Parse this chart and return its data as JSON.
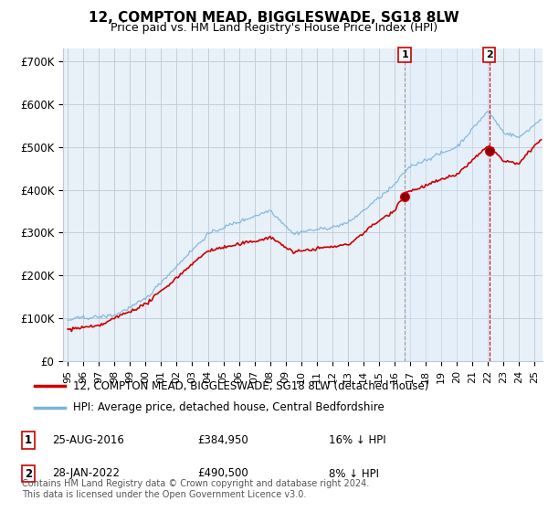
{
  "title": "12, COMPTON MEAD, BIGGLESWADE, SG18 8LW",
  "subtitle": "Price paid vs. HM Land Registry's House Price Index (HPI)",
  "ylabel_ticks": [
    "£0",
    "£100K",
    "£200K",
    "£300K",
    "£400K",
    "£500K",
    "£600K",
    "£700K"
  ],
  "ytick_values": [
    0,
    100000,
    200000,
    300000,
    400000,
    500000,
    600000,
    700000
  ],
  "ylim": [
    0,
    730000
  ],
  "transaction1_year": 2016.647,
  "transaction1_price": 384950,
  "transaction2_year": 2022.077,
  "transaction2_price": 490500,
  "transaction1_date": "25-AUG-2016",
  "transaction2_date": "28-JAN-2022",
  "transaction1_hpi_diff": "16% ↓ HPI",
  "transaction2_hpi_diff": "8% ↓ HPI",
  "legend_line1": "12, COMPTON MEAD, BIGGLESWADE, SG18 8LW (detached house)",
  "legend_line2": "HPI: Average price, detached house, Central Bedfordshire",
  "price1_text": "£384,950",
  "price2_text": "£490,500",
  "footnote": "Contains HM Land Registry data © Crown copyright and database right 2024.\nThis data is licensed under the Open Government Licence v3.0.",
  "hpi_color": "#7ab4d8",
  "price_color": "#cc0000",
  "vline1_color": "#999999",
  "vline2_color": "#cc0000",
  "shade_color": "#ddeeff",
  "bg_color": "#e8f0f8",
  "grid_color": "#c0c8d8",
  "xlim_left": 1994.7,
  "xlim_right": 2025.5
}
